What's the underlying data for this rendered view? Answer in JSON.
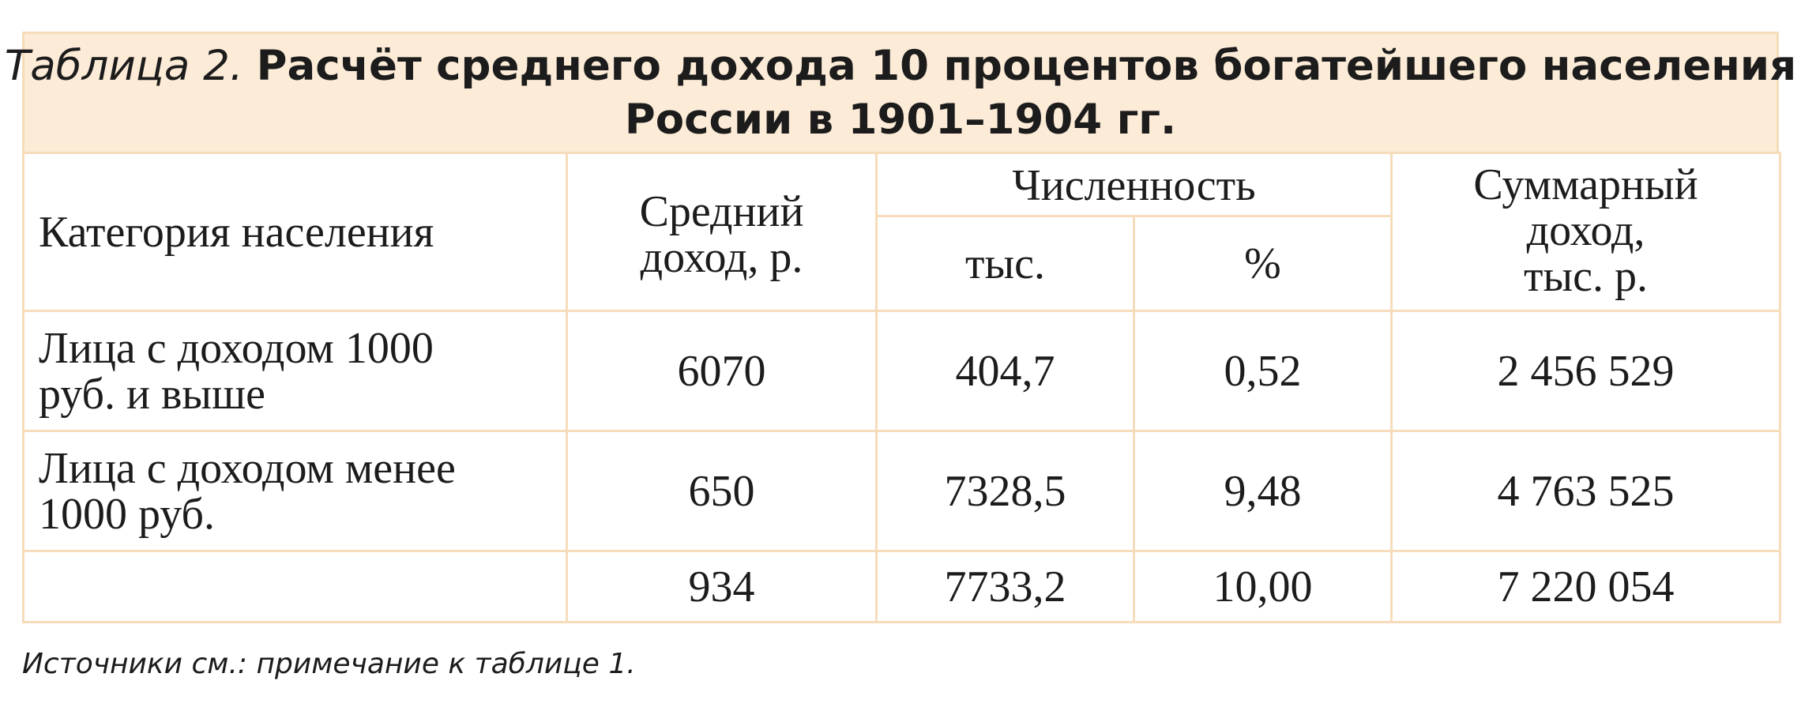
{
  "title": {
    "prefix": "Таблица 2.",
    "line1": "Расчёт среднего дохода 10 процентов богатейшего населения",
    "line2": "России в 1901–1904 гг."
  },
  "headers": {
    "category": "Категория населения",
    "average_income": [
      "Средний",
      "доход, р."
    ],
    "count": "Численность",
    "count_thousands": "тыс.",
    "count_percent": "%",
    "total_income": [
      "Суммарный",
      "доход,",
      "тыс. р."
    ]
  },
  "rows": [
    {
      "category": [
        "Лица с доходом 1000",
        "руб. и выше"
      ],
      "average_income": "6070",
      "count_thousands": "404,7",
      "count_percent": "0,52",
      "total_income": "2 456 529"
    },
    {
      "category": [
        "Лица с доходом менее",
        "1000 руб."
      ],
      "average_income": "650",
      "count_thousands": "7328,5",
      "count_percent": "9,48",
      "total_income": "4 763 525"
    },
    {
      "category": [
        "",
        ""
      ],
      "average_income": "934",
      "count_thousands": "7733,2",
      "count_percent": "10,00",
      "total_income": "7 220 054"
    }
  ],
  "footnote": "Источники см.: примечание к таблице 1.",
  "colors": {
    "title_bg": "#fcebd7",
    "border": "#f7dcbb",
    "text": "#1c1c1c"
  }
}
